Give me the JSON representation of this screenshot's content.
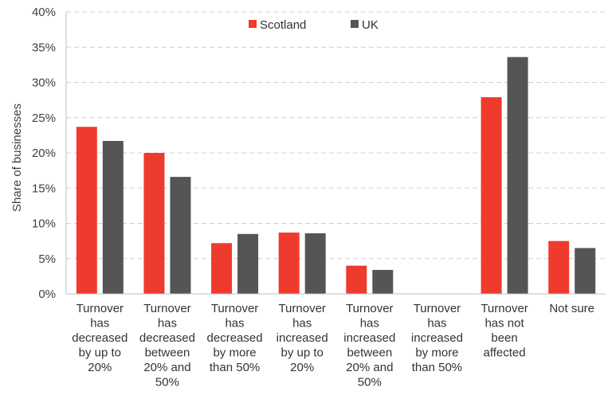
{
  "chart_data": {
    "type": "bar",
    "title": "",
    "ylabel": "Share of businesses",
    "xlabel": "",
    "ylim": [
      0,
      40
    ],
    "y_ticks": [
      "0%",
      "5%",
      "10%",
      "15%",
      "20%",
      "25%",
      "30%",
      "35%",
      "40%"
    ],
    "y_tick_values": [
      0,
      5,
      10,
      15,
      20,
      25,
      30,
      35,
      40
    ],
    "grid": true,
    "legend_position": "top-center",
    "categories": [
      "Turnover has decreased by up to 20%",
      "Turnover has decreased between 20% and 50%",
      "Turnover has decreased by more than 50%",
      "Turnover has increased by up to 20%",
      "Turnover has increased between 20% and 50%",
      "Turnover has increased by more than 50%",
      "Turnover has not been affected",
      "Not sure"
    ],
    "category_lines": [
      [
        "Turnover",
        "has",
        "decreased",
        "by up to",
        "20%"
      ],
      [
        "Turnover",
        "has",
        "decreased",
        "between",
        "20% and",
        "50%"
      ],
      [
        "Turnover",
        "has",
        "decreased",
        "by more",
        "than 50%"
      ],
      [
        "Turnover",
        "has",
        "increased",
        "by up to",
        "20%"
      ],
      [
        "Turnover",
        "has",
        "increased",
        "between",
        "20% and",
        "50%"
      ],
      [
        "Turnover",
        "has",
        "increased",
        "by more",
        "than 50%"
      ],
      [
        "Turnover",
        "has not",
        "been",
        "affected"
      ],
      [
        "Not sure"
      ]
    ],
    "series": [
      {
        "name": "Scotland",
        "color": "#EE3B2E",
        "values": [
          23.7,
          20.0,
          7.2,
          8.7,
          4.0,
          0.0,
          27.9,
          7.5
        ]
      },
      {
        "name": "UK",
        "color": "#555555",
        "values": [
          21.7,
          16.6,
          8.5,
          8.6,
          3.4,
          0.0,
          33.6,
          6.5
        ]
      }
    ]
  }
}
